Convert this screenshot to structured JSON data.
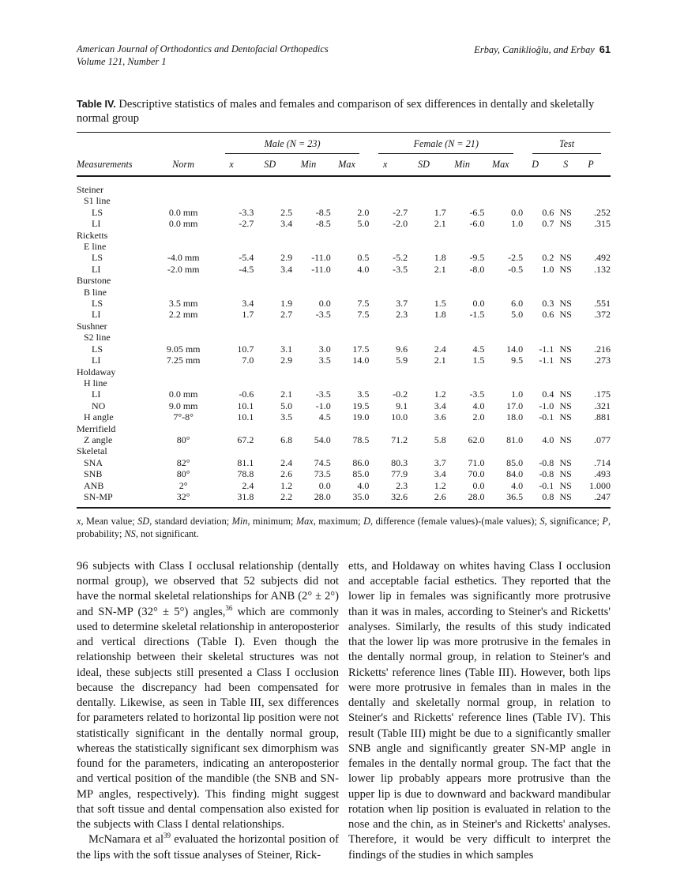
{
  "page_header": {
    "journal_line1": "American Journal of Orthodontics and Dentofacial Orthopedics",
    "journal_line2": "Volume 121, Number 1",
    "authors": "Erbay, Caniklioğlu, and Erbay",
    "page_number": "61"
  },
  "table": {
    "label": "Table IV.",
    "caption": "Descriptive statistics of males and females and comparison of sex differences in dentally and skeletally normal group",
    "group_headers": [
      {
        "label": "Male (N = 23)",
        "span": 4
      },
      {
        "label": "Female (N = 21)",
        "span": 4
      },
      {
        "label": "Test",
        "span": 3
      }
    ],
    "columns": [
      "Measurements",
      "Norm",
      "x",
      "SD",
      "Min",
      "Max",
      "x",
      "SD",
      "Min",
      "Max",
      "D",
      "S",
      "P"
    ],
    "rows": [
      {
        "label": "Steiner",
        "indent": 0
      },
      {
        "label": "S1 line",
        "indent": 1
      },
      {
        "label": "LS",
        "indent": 2,
        "norm": "0.0 mm",
        "values": [
          "-3.3",
          "2.5",
          "-8.5",
          "2.0",
          "-2.7",
          "1.7",
          "-6.5",
          "0.0",
          "0.6",
          "NS",
          ".252"
        ]
      },
      {
        "label": "LI",
        "indent": 2,
        "norm": "0.0 mm",
        "values": [
          "-2.7",
          "3.4",
          "-8.5",
          "5.0",
          "-2.0",
          "2.1",
          "-6.0",
          "1.0",
          "0.7",
          "NS",
          ".315"
        ]
      },
      {
        "label": "Ricketts",
        "indent": 0
      },
      {
        "label": "E line",
        "indent": 1
      },
      {
        "label": "LS",
        "indent": 2,
        "norm": "-4.0 mm",
        "values": [
          "-5.4",
          "2.9",
          "-11.0",
          "0.5",
          "-5.2",
          "1.8",
          "-9.5",
          "-2.5",
          "0.2",
          "NS",
          ".492"
        ]
      },
      {
        "label": "LI",
        "indent": 2,
        "norm": "-2.0 mm",
        "values": [
          "-4.5",
          "3.4",
          "-11.0",
          "4.0",
          "-3.5",
          "2.1",
          "-8.0",
          "-0.5",
          "1.0",
          "NS",
          ".132"
        ]
      },
      {
        "label": "Burstone",
        "indent": 0
      },
      {
        "label": "B line",
        "indent": 1
      },
      {
        "label": "LS",
        "indent": 2,
        "norm": "3.5 mm",
        "values": [
          "3.4",
          "1.9",
          "0.0",
          "7.5",
          "3.7",
          "1.5",
          "0.0",
          "6.0",
          "0.3",
          "NS",
          ".551"
        ]
      },
      {
        "label": "LI",
        "indent": 2,
        "norm": "2.2 mm",
        "values": [
          "1.7",
          "2.7",
          "-3.5",
          "7.5",
          "2.3",
          "1.8",
          "-1.5",
          "5.0",
          "0.6",
          "NS",
          ".372"
        ]
      },
      {
        "label": "Sushner",
        "indent": 0
      },
      {
        "label": "S2 line",
        "indent": 1
      },
      {
        "label": "LS",
        "indent": 2,
        "norm": "9.05 mm",
        "values": [
          "10.7",
          "3.1",
          "3.0",
          "17.5",
          "9.6",
          "2.4",
          "4.5",
          "14.0",
          "-1.1",
          "NS",
          ".216"
        ]
      },
      {
        "label": "LI",
        "indent": 2,
        "norm": "7.25 mm",
        "values": [
          "7.0",
          "2.9",
          "3.5",
          "14.0",
          "5.9",
          "2.1",
          "1.5",
          "9.5",
          "-1.1",
          "NS",
          ".273"
        ]
      },
      {
        "label": "Holdaway",
        "indent": 0
      },
      {
        "label": "H line",
        "indent": 1
      },
      {
        "label": "LI",
        "indent": 2,
        "norm": "0.0 mm",
        "values": [
          "-0.6",
          "2.1",
          "-3.5",
          "3.5",
          "-0.2",
          "1.2",
          "-3.5",
          "1.0",
          "0.4",
          "NS",
          ".175"
        ]
      },
      {
        "label": "NO",
        "indent": 2,
        "norm": "9.0 mm",
        "values": [
          "10.1",
          "5.0",
          "-1.0",
          "19.5",
          "9.1",
          "3.4",
          "4.0",
          "17.0",
          "-1.0",
          "NS",
          ".321"
        ]
      },
      {
        "label": "H angle",
        "indent": 1,
        "norm": "7°-8°",
        "values": [
          "10.1",
          "3.5",
          "4.5",
          "19.0",
          "10.0",
          "3.6",
          "2.0",
          "18.0",
          "-0.1",
          "NS",
          ".881"
        ]
      },
      {
        "label": "Merrifield",
        "indent": 0
      },
      {
        "label": "Z angle",
        "indent": 1,
        "norm": "80°",
        "values": [
          "67.2",
          "6.8",
          "54.0",
          "78.5",
          "71.2",
          "5.8",
          "62.0",
          "81.0",
          "4.0",
          "NS",
          ".077"
        ]
      },
      {
        "label": "Skeletal",
        "indent": 0
      },
      {
        "label": "SNA",
        "indent": 1,
        "norm": "82°",
        "values": [
          "81.1",
          "2.4",
          "74.5",
          "86.0",
          "80.3",
          "3.7",
          "71.0",
          "85.0",
          "-0.8",
          "NS",
          ".714"
        ]
      },
      {
        "label": "SNB",
        "indent": 1,
        "norm": "80°",
        "values": [
          "78.8",
          "2.6",
          "73.5",
          "85.0",
          "77.9",
          "3.4",
          "70.0",
          "84.0",
          "-0.8",
          "NS",
          ".493"
        ]
      },
      {
        "label": "ANB",
        "indent": 1,
        "norm": "2°",
        "values": [
          "2.4",
          "1.2",
          "0.0",
          "4.0",
          "2.3",
          "1.2",
          "0.0",
          "4.0",
          "-0.1",
          "NS",
          "1.000"
        ]
      },
      {
        "label": "SN-MP",
        "indent": 1,
        "norm": "32°",
        "values": [
          "31.8",
          "2.2",
          "28.0",
          "35.0",
          "32.6",
          "2.6",
          "28.0",
          "36.5",
          "0.8",
          "NS",
          ".247"
        ]
      }
    ],
    "footnote_parts": [
      {
        "t": "x",
        "i": true
      },
      {
        "t": ", Mean value; "
      },
      {
        "t": "SD",
        "i": true
      },
      {
        "t": ", standard deviation; "
      },
      {
        "t": "Min",
        "i": true
      },
      {
        "t": ", minimum; "
      },
      {
        "t": "Max",
        "i": true
      },
      {
        "t": ", maximum; "
      },
      {
        "t": "D",
        "i": true
      },
      {
        "t": ", difference (female values)-(male values); "
      },
      {
        "t": "S",
        "i": true
      },
      {
        "t": ", significance; "
      },
      {
        "t": "P",
        "i": true
      },
      {
        "t": ", probability; "
      },
      {
        "t": "NS",
        "i": true
      },
      {
        "t": ", not significant."
      }
    ]
  },
  "body": {
    "left_column": [
      {
        "indent": false,
        "segments": [
          {
            "t": "96 subjects with Class I occlusal relationship (dentally normal group), we observed that 52 subjects did not have the normal skeletal relationships for ANB (2° ± 2°) and SN-MP (32° ± 5°) angles,"
          },
          {
            "t": "36",
            "sup": true
          },
          {
            "t": " which are commonly used to determine skeletal relationship in anteroposterior and vertical directions (Table I). Even though the relationship between their skeletal structures was not ideal, these subjects still presented a Class I occlusion because the discrepancy had been compensated for dentally. Likewise, as seen in Table III, sex differences for parameters related to horizontal lip position were not statistically significant in the dentally normal group, whereas the statistically significant sex dimorphism was found for the parameters, indicating an anteroposterior and vertical position of the mandible (the SNB and SN-MP angles, respectively). This finding might suggest that soft tissue and dental compensation also existed for the subjects with Class I dental relationships."
          }
        ]
      },
      {
        "indent": true,
        "segments": [
          {
            "t": "McNamara et al"
          },
          {
            "t": "39",
            "sup": true
          },
          {
            "t": " evaluated the horizontal position of the lips with the soft tissue analyses of Steiner, Rick-"
          }
        ]
      }
    ],
    "right_column": [
      {
        "indent": false,
        "segments": [
          {
            "t": "etts, and Holdaway on whites having Class I occlusion and acceptable facial esthetics. They reported that the lower lip in females was significantly more protrusive than it was in males, according to Steiner's and Ricketts' analyses. Similarly, the results of this study indicated that the lower lip was more protrusive in the females in the dentally normal group, in relation to Steiner's and Ricketts' reference lines (Table III). However, both lips were more protrusive in females than in males in the dentally and skeletally normal group, in relation to Steiner's and Ricketts' reference lines (Table IV). This result (Table III) might be due to a significantly smaller SNB angle and significantly greater SN-MP angle in females in the dentally normal group. The fact that the lower lip probably appears more protrusive than the upper lip is due to downward and backward mandibular rotation when lip position is evaluated in relation to the nose and the chin, as in Steiner's and Ricketts' analyses. Therefore, it would be very difficult to interpret the findings of the studies in which samples"
          }
        ]
      }
    ]
  }
}
